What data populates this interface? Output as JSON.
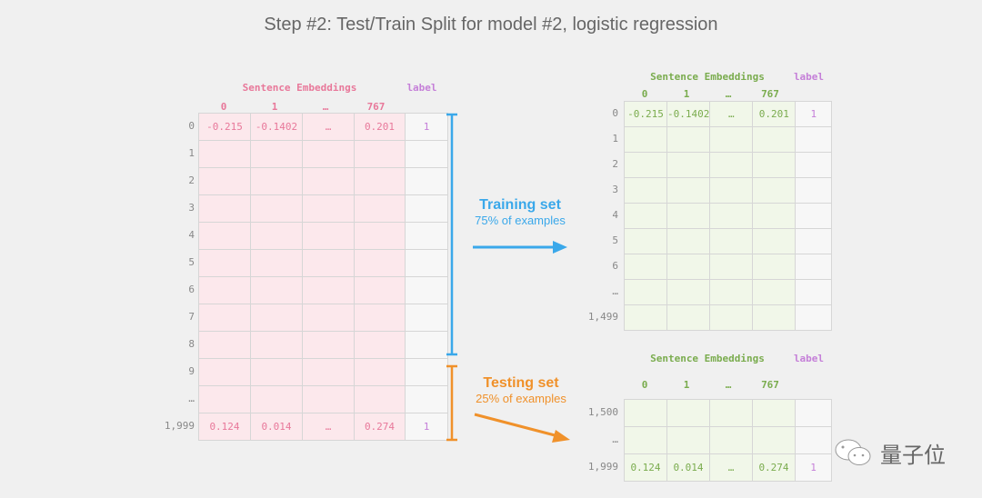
{
  "title": "Step #2: Test/Train Split for model #2, logistic regression",
  "colors": {
    "pink": "#e8789a",
    "green": "#7aac4e",
    "label": "#c57fd8",
    "blue": "#3aa8ea",
    "orange": "#f0912a"
  },
  "full": {
    "header": "Sentence Embeddings",
    "label_header": "label",
    "cols": [
      "0",
      "1",
      "…",
      "767"
    ],
    "rows": [
      [
        "0",
        "-0.215",
        "-0.1402",
        "…",
        "0.201",
        "1"
      ],
      [
        "1",
        "",
        "",
        "",
        "",
        ""
      ],
      [
        "2",
        "",
        "",
        "",
        "",
        ""
      ],
      [
        "3",
        "",
        "",
        "",
        "",
        ""
      ],
      [
        "4",
        "",
        "",
        "",
        "",
        ""
      ],
      [
        "5",
        "",
        "",
        "",
        "",
        ""
      ],
      [
        "6",
        "",
        "",
        "",
        "",
        ""
      ],
      [
        "7",
        "",
        "",
        "",
        "",
        ""
      ],
      [
        "8",
        "",
        "",
        "",
        "",
        ""
      ],
      [
        "9",
        "",
        "",
        "",
        "",
        ""
      ],
      [
        "…",
        "",
        "",
        "",
        "",
        ""
      ],
      [
        "1,999",
        "0.124",
        "0.014",
        "…",
        "0.274",
        "1"
      ]
    ]
  },
  "train": {
    "header": "Sentence Embeddings",
    "label_header": "label",
    "cols": [
      "0",
      "1",
      "…",
      "767"
    ],
    "rows": [
      [
        "0",
        "-0.215",
        "-0.1402",
        "…",
        "0.201",
        "1"
      ],
      [
        "1",
        "",
        "",
        "",
        "",
        ""
      ],
      [
        "2",
        "",
        "",
        "",
        "",
        ""
      ],
      [
        "3",
        "",
        "",
        "",
        "",
        ""
      ],
      [
        "4",
        "",
        "",
        "",
        "",
        ""
      ],
      [
        "5",
        "",
        "",
        "",
        "",
        ""
      ],
      [
        "6",
        "",
        "",
        "",
        "",
        ""
      ],
      [
        "…",
        "",
        "",
        "",
        "",
        ""
      ],
      [
        "1,499",
        "",
        "",
        "",
        "",
        ""
      ]
    ]
  },
  "test": {
    "header": "Sentence Embeddings",
    "label_header": "label",
    "cols": [
      "0",
      "1",
      "…",
      "767"
    ],
    "rows": [
      [
        "1,500",
        "",
        "",
        "",
        "",
        ""
      ],
      [
        "…",
        "",
        "",
        "",
        "",
        ""
      ],
      [
        "1,999",
        "0.124",
        "0.014",
        "…",
        "0.274",
        "1"
      ]
    ]
  },
  "training_set": {
    "title": "Training set",
    "subtitle": "75% of examples"
  },
  "testing_set": {
    "title": "Testing set",
    "subtitle": "25% of examples"
  },
  "watermark": "量子位"
}
